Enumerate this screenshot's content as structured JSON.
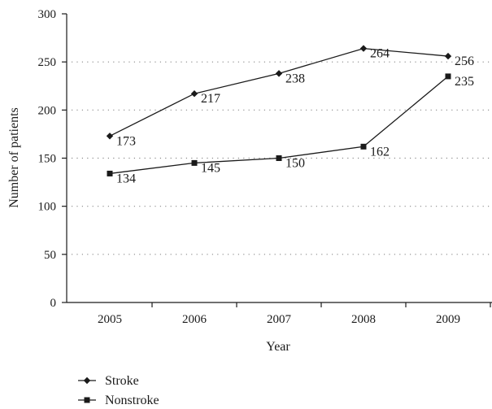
{
  "chart_data": {
    "type": "line",
    "title": "",
    "xlabel": "Year",
    "ylabel": "Number of patients",
    "categories": [
      "2005",
      "2006",
      "2007",
      "2008",
      "2009"
    ],
    "ylim": [
      0,
      300
    ],
    "yticks": [
      0,
      50,
      100,
      150,
      200,
      250,
      300
    ],
    "grid": "horizontal-dotted",
    "legend_position": "bottom-left",
    "series": [
      {
        "name": "Stroke",
        "marker": "diamond",
        "values": [
          173,
          217,
          238,
          264,
          256
        ],
        "labels": [
          "173",
          "217",
          "238",
          "264",
          "256"
        ]
      },
      {
        "name": "Nonstroke",
        "marker": "square",
        "values": [
          134,
          145,
          150,
          162,
          235
        ],
        "labels": [
          "134",
          "145",
          "150",
          "162",
          "235"
        ]
      }
    ],
    "colors": {
      "line": "#1a1a1a",
      "grid": "#8a8a8a"
    }
  }
}
